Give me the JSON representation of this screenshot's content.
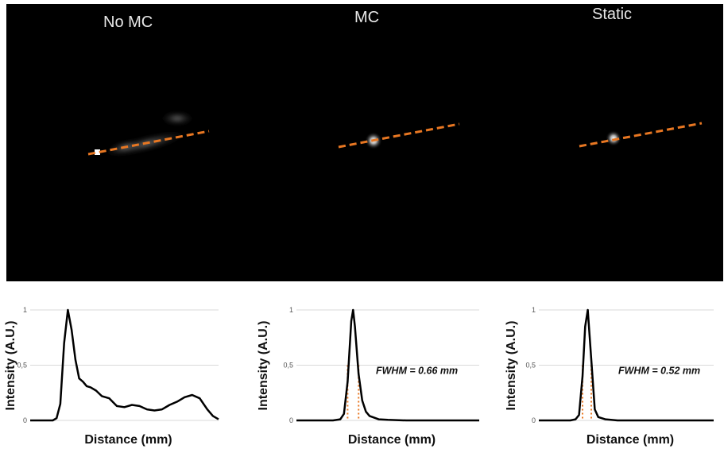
{
  "panels": [
    {
      "title": "No MC"
    },
    {
      "title": "MC"
    },
    {
      "title": "Static"
    }
  ],
  "colors": {
    "profile_line": "#e87722",
    "curve": "#000000",
    "fwhm_marker": "#e87722",
    "gridline": "#d9d9d9",
    "background_image": "#000000"
  },
  "chart_data": [
    {
      "type": "line",
      "panel": "No MC",
      "xlabel": "Distance (mm)",
      "ylabel": "Intensity (A.U.)",
      "ylim": [
        0,
        1
      ],
      "yticks": [
        "0",
        "0,5",
        "1"
      ],
      "grid": true,
      "series": [
        {
          "x": [
            0,
            4,
            8,
            10,
            12,
            14,
            16,
            18,
            20,
            22,
            24,
            26,
            28,
            30,
            32,
            35,
            38,
            42,
            46,
            50,
            54,
            58,
            62,
            66,
            70,
            74,
            78,
            82,
            86,
            90,
            94,
            97,
            100
          ],
          "values": [
            0,
            0,
            0,
            0,
            0,
            0.02,
            0.15,
            0.7,
            1.0,
            0.82,
            0.55,
            0.38,
            0.35,
            0.31,
            0.3,
            0.27,
            0.22,
            0.2,
            0.13,
            0.12,
            0.14,
            0.13,
            0.1,
            0.09,
            0.1,
            0.14,
            0.17,
            0.21,
            0.23,
            0.2,
            0.1,
            0.04,
            0.01
          ]
        }
      ],
      "annotation": ""
    },
    {
      "type": "line",
      "panel": "MC",
      "xlabel": "Distance (mm)",
      "ylabel": "Intensity (A.U.)",
      "ylim": [
        0,
        1
      ],
      "yticks": [
        "0",
        "0,5",
        "1"
      ],
      "grid": true,
      "fwhm_x": [
        28,
        34
      ],
      "series": [
        {
          "x": [
            0,
            10,
            20,
            24,
            26,
            28,
            30,
            31,
            32,
            34,
            36,
            38,
            40,
            45,
            50,
            60,
            80,
            100
          ],
          "values": [
            0,
            0,
            0,
            0.01,
            0.06,
            0.35,
            0.9,
            1.0,
            0.85,
            0.42,
            0.18,
            0.08,
            0.04,
            0.01,
            0.005,
            0,
            0,
            0
          ]
        }
      ],
      "annotation": "FWHM = 0.66 mm"
    },
    {
      "type": "line",
      "panel": "Static",
      "xlabel": "Distance (mm)",
      "ylabel": "Intensity (A.U.)",
      "ylim": [
        0,
        1
      ],
      "yticks": [
        "0",
        "0,5",
        "1"
      ],
      "grid": true,
      "fwhm_x": [
        25,
        30
      ],
      "series": [
        {
          "x": [
            0,
            10,
            18,
            21,
            23,
            25,
            26.5,
            28,
            30,
            32,
            34,
            38,
            45,
            60,
            80,
            100
          ],
          "values": [
            0,
            0,
            0,
            0.01,
            0.05,
            0.4,
            0.85,
            1.0,
            0.55,
            0.1,
            0.03,
            0.01,
            0,
            0,
            0,
            0
          ]
        }
      ],
      "annotation": "FWHM = 0.52 mm"
    }
  ]
}
